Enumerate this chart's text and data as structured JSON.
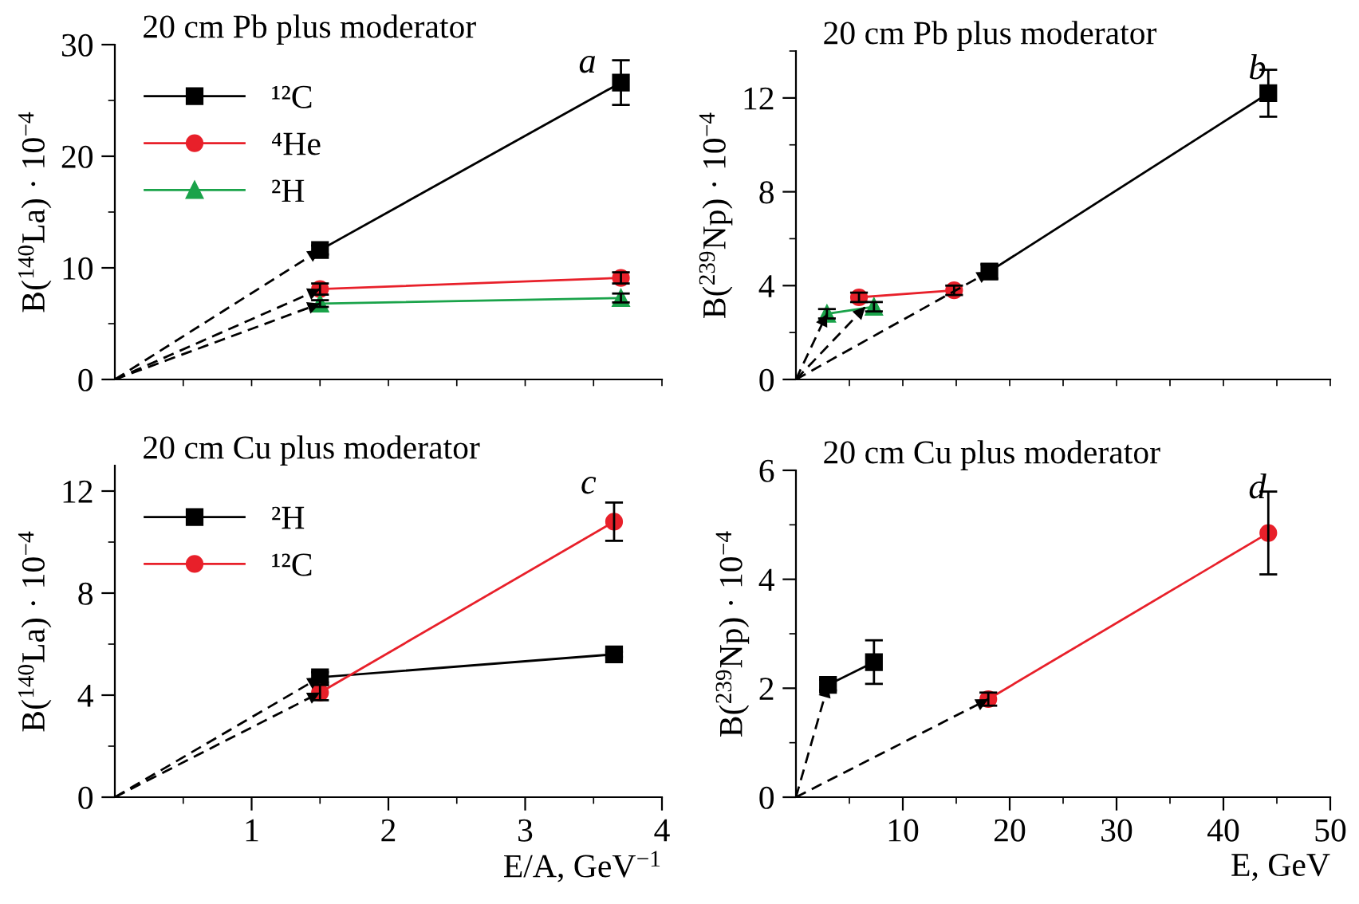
{
  "chart_data": [
    {
      "type": "line",
      "title": "20 cm Pb plus moderator",
      "ylabel": "B($^{140}$La) · 10$^{−4}$",
      "annotations": [
        "a"
      ],
      "xlim": [
        0,
        4
      ],
      "xticks": [
        {
          "value": 0.5,
          "label": null
        },
        {
          "value": 1,
          "label": null
        },
        {
          "value": 1.5,
          "label": null
        },
        {
          "value": 2,
          "label": null
        },
        {
          "value": 2.5,
          "label": null
        },
        {
          "value": 3,
          "label": null
        },
        {
          "value": 3.5,
          "label": null
        },
        {
          "value": 4,
          "label": null
        }
      ],
      "ylim": [
        0,
        30
      ],
      "yticks": [
        0,
        {
          "value": 5,
          "label": null
        },
        10,
        {
          "value": 15,
          "label": null
        },
        20,
        {
          "value": 25,
          "label": null
        },
        30
      ],
      "tick_labels": "y",
      "legend": "top left",
      "grid": false,
      "series": [
        {
          "name": "¹²C",
          "color": "#000000",
          "marker": "square",
          "x": [
            1.5,
            3.7
          ],
          "values": [
            11.6,
            26.6
          ],
          "errors": [
            0.4,
            2.0
          ]
        },
        {
          "name": "⁴He",
          "color": "#e8202a",
          "marker": "circle",
          "x": [
            1.5,
            3.7
          ],
          "values": [
            8.1,
            9.1
          ],
          "errors": [
            0.5,
            0.5
          ]
        },
        {
          "name": "²H",
          "color": "#1aa34a",
          "marker": "triangle",
          "x": [
            1.5,
            3.7
          ],
          "values": [
            6.8,
            7.3
          ],
          "errors": [
            0.3,
            0.4
          ]
        },
        {
          "color": "#000000",
          "marker": "none",
          "line_style": "dashed",
          "x": [
            0,
            1.5
          ],
          "values": [
            0,
            11.6
          ]
        },
        {
          "color": "#000000",
          "marker": "none",
          "line_style": "dashed",
          "x": [
            0,
            1.5
          ],
          "values": [
            0,
            8.1
          ]
        },
        {
          "color": "#000000",
          "marker": "none",
          "line_style": "dashed",
          "x": [
            0,
            1.5
          ],
          "values": [
            0,
            6.8
          ]
        }
      ]
    },
    {
      "type": "line",
      "title": "20 cm Pb plus moderator",
      "ylabel": "B($^{239}$Np) · 10$^{−4}$",
      "annotations": [
        "b"
      ],
      "xlim": [
        0,
        50
      ],
      "xticks": [
        {
          "value": 5,
          "label": null
        },
        {
          "value": 10,
          "label": null
        },
        {
          "value": 15,
          "label": null
        },
        {
          "value": 20,
          "label": null
        },
        {
          "value": 25,
          "label": null
        },
        {
          "value": 30,
          "label": null
        },
        {
          "value": 35,
          "label": null
        },
        {
          "value": 40,
          "label": null
        },
        {
          "value": 45,
          "label": null
        },
        {
          "value": 50,
          "label": null
        }
      ],
      "ylim": [
        0,
        14
      ],
      "yticks": [
        0,
        {
          "value": 2,
          "label": null
        },
        4,
        {
          "value": 6,
          "label": null
        },
        8,
        {
          "value": 10,
          "label": null
        },
        12,
        {
          "value": 14,
          "label": null
        }
      ],
      "tick_labels": "y",
      "grid": false,
      "series": [
        {
          "color": "#000000",
          "marker": "square",
          "x": [
            18.1,
            44.2
          ],
          "values": [
            4.6,
            12.2
          ],
          "errors": [
            0.3,
            1.0
          ]
        },
        {
          "color": "#e8202a",
          "marker": "circle",
          "x": [
            5.9,
            14.8
          ],
          "values": [
            3.5,
            3.8
          ],
          "errors": [
            0.2,
            0.2
          ]
        },
        {
          "color": "#1aa34a",
          "marker": "triangle",
          "x": [
            2.9,
            7.3
          ],
          "values": [
            2.8,
            3.1
          ],
          "errors": [
            0.2,
            0.2
          ]
        },
        {
          "color": "#000000",
          "marker": "none",
          "line_style": "dashed",
          "x": [
            0,
            2.9
          ],
          "values": [
            0,
            2.8
          ]
        },
        {
          "color": "#000000",
          "marker": "none",
          "line_style": "dashed",
          "x": [
            0,
            6.5
          ],
          "values": [
            0,
            3.1
          ]
        },
        {
          "color": "#000000",
          "marker": "none",
          "line_style": "dashed",
          "x": [
            0,
            18.1
          ],
          "values": [
            0,
            4.6
          ]
        }
      ]
    },
    {
      "type": "line",
      "title": "20 cm Cu plus moderator",
      "ylabel": "B($^{140}$La) · 10$^{−4}$",
      "xlabel": "E/A, GeV$^{−1}$",
      "annotations": [
        "c"
      ],
      "xlim": [
        0,
        4
      ],
      "xticks": [
        {
          "value": 0.5,
          "label": null
        },
        1,
        {
          "value": 1.5,
          "label": null
        },
        2,
        {
          "value": 2.5,
          "label": null
        },
        3,
        {
          "value": 3.5,
          "label": null
        },
        4
      ],
      "ylim": [
        0,
        13
      ],
      "yticks": [
        0,
        {
          "value": 2,
          "label": null
        },
        4,
        {
          "value": 6,
          "label": null
        },
        8,
        {
          "value": 10,
          "label": null
        },
        12
      ],
      "legend": "top left",
      "grid": false,
      "series": [
        {
          "name": "²H",
          "color": "#000000",
          "marker": "square",
          "x": [
            1.5,
            3.65
          ],
          "values": [
            4.7,
            5.6
          ],
          "errors": [
            0.2,
            0.1
          ]
        },
        {
          "name": "¹²C",
          "color": "#e8202a",
          "marker": "circle",
          "x": [
            1.5,
            3.65
          ],
          "values": [
            4.1,
            10.8
          ],
          "errors": [
            0.3,
            0.75
          ]
        },
        {
          "color": "#000000",
          "marker": "none",
          "line_style": "dashed",
          "x": [
            0,
            1.5
          ],
          "values": [
            0,
            4.7
          ]
        },
        {
          "color": "#000000",
          "marker": "none",
          "line_style": "dashed",
          "x": [
            0,
            1.5
          ],
          "values": [
            0,
            4.1
          ]
        }
      ]
    },
    {
      "type": "line",
      "title": "20 cm Cu plus moderator",
      "ylabel": "B($^{239}$Np) · 10$^{−4}$",
      "xlabel": "E, GeV",
      "annotations": [
        "d"
      ],
      "xlim": [
        0,
        50
      ],
      "xticks": [
        {
          "value": 5,
          "label": null
        },
        10,
        {
          "value": 15,
          "label": null
        },
        20,
        {
          "value": 25,
          "label": null
        },
        30,
        {
          "value": 35,
          "label": null
        },
        40,
        {
          "value": 45,
          "label": null
        },
        50
      ],
      "ylim": [
        0,
        6
      ],
      "yticks": [
        0,
        {
          "value": 1,
          "label": null
        },
        2,
        {
          "value": 3,
          "label": null
        },
        4,
        {
          "value": 5,
          "label": null
        },
        6
      ],
      "grid": false,
      "series": [
        {
          "color": "#000000",
          "marker": "square",
          "x": [
            3.0,
            7.3
          ],
          "values": [
            2.06,
            2.48
          ],
          "errors": [
            0.1,
            0.4
          ]
        },
        {
          "color": "#e8202a",
          "marker": "circle",
          "x": [
            18.0,
            44.2
          ],
          "values": [
            1.8,
            4.85
          ],
          "errors": [
            0.12,
            0.76
          ]
        },
        {
          "color": "#000000",
          "marker": "none",
          "line_style": "dashed",
          "x": [
            0,
            3.0
          ],
          "values": [
            0,
            2.06
          ]
        },
        {
          "color": "#000000",
          "marker": "none",
          "line_style": "dashed",
          "x": [
            0,
            18.0
          ],
          "values": [
            0,
            1.8
          ]
        }
      ]
    }
  ]
}
